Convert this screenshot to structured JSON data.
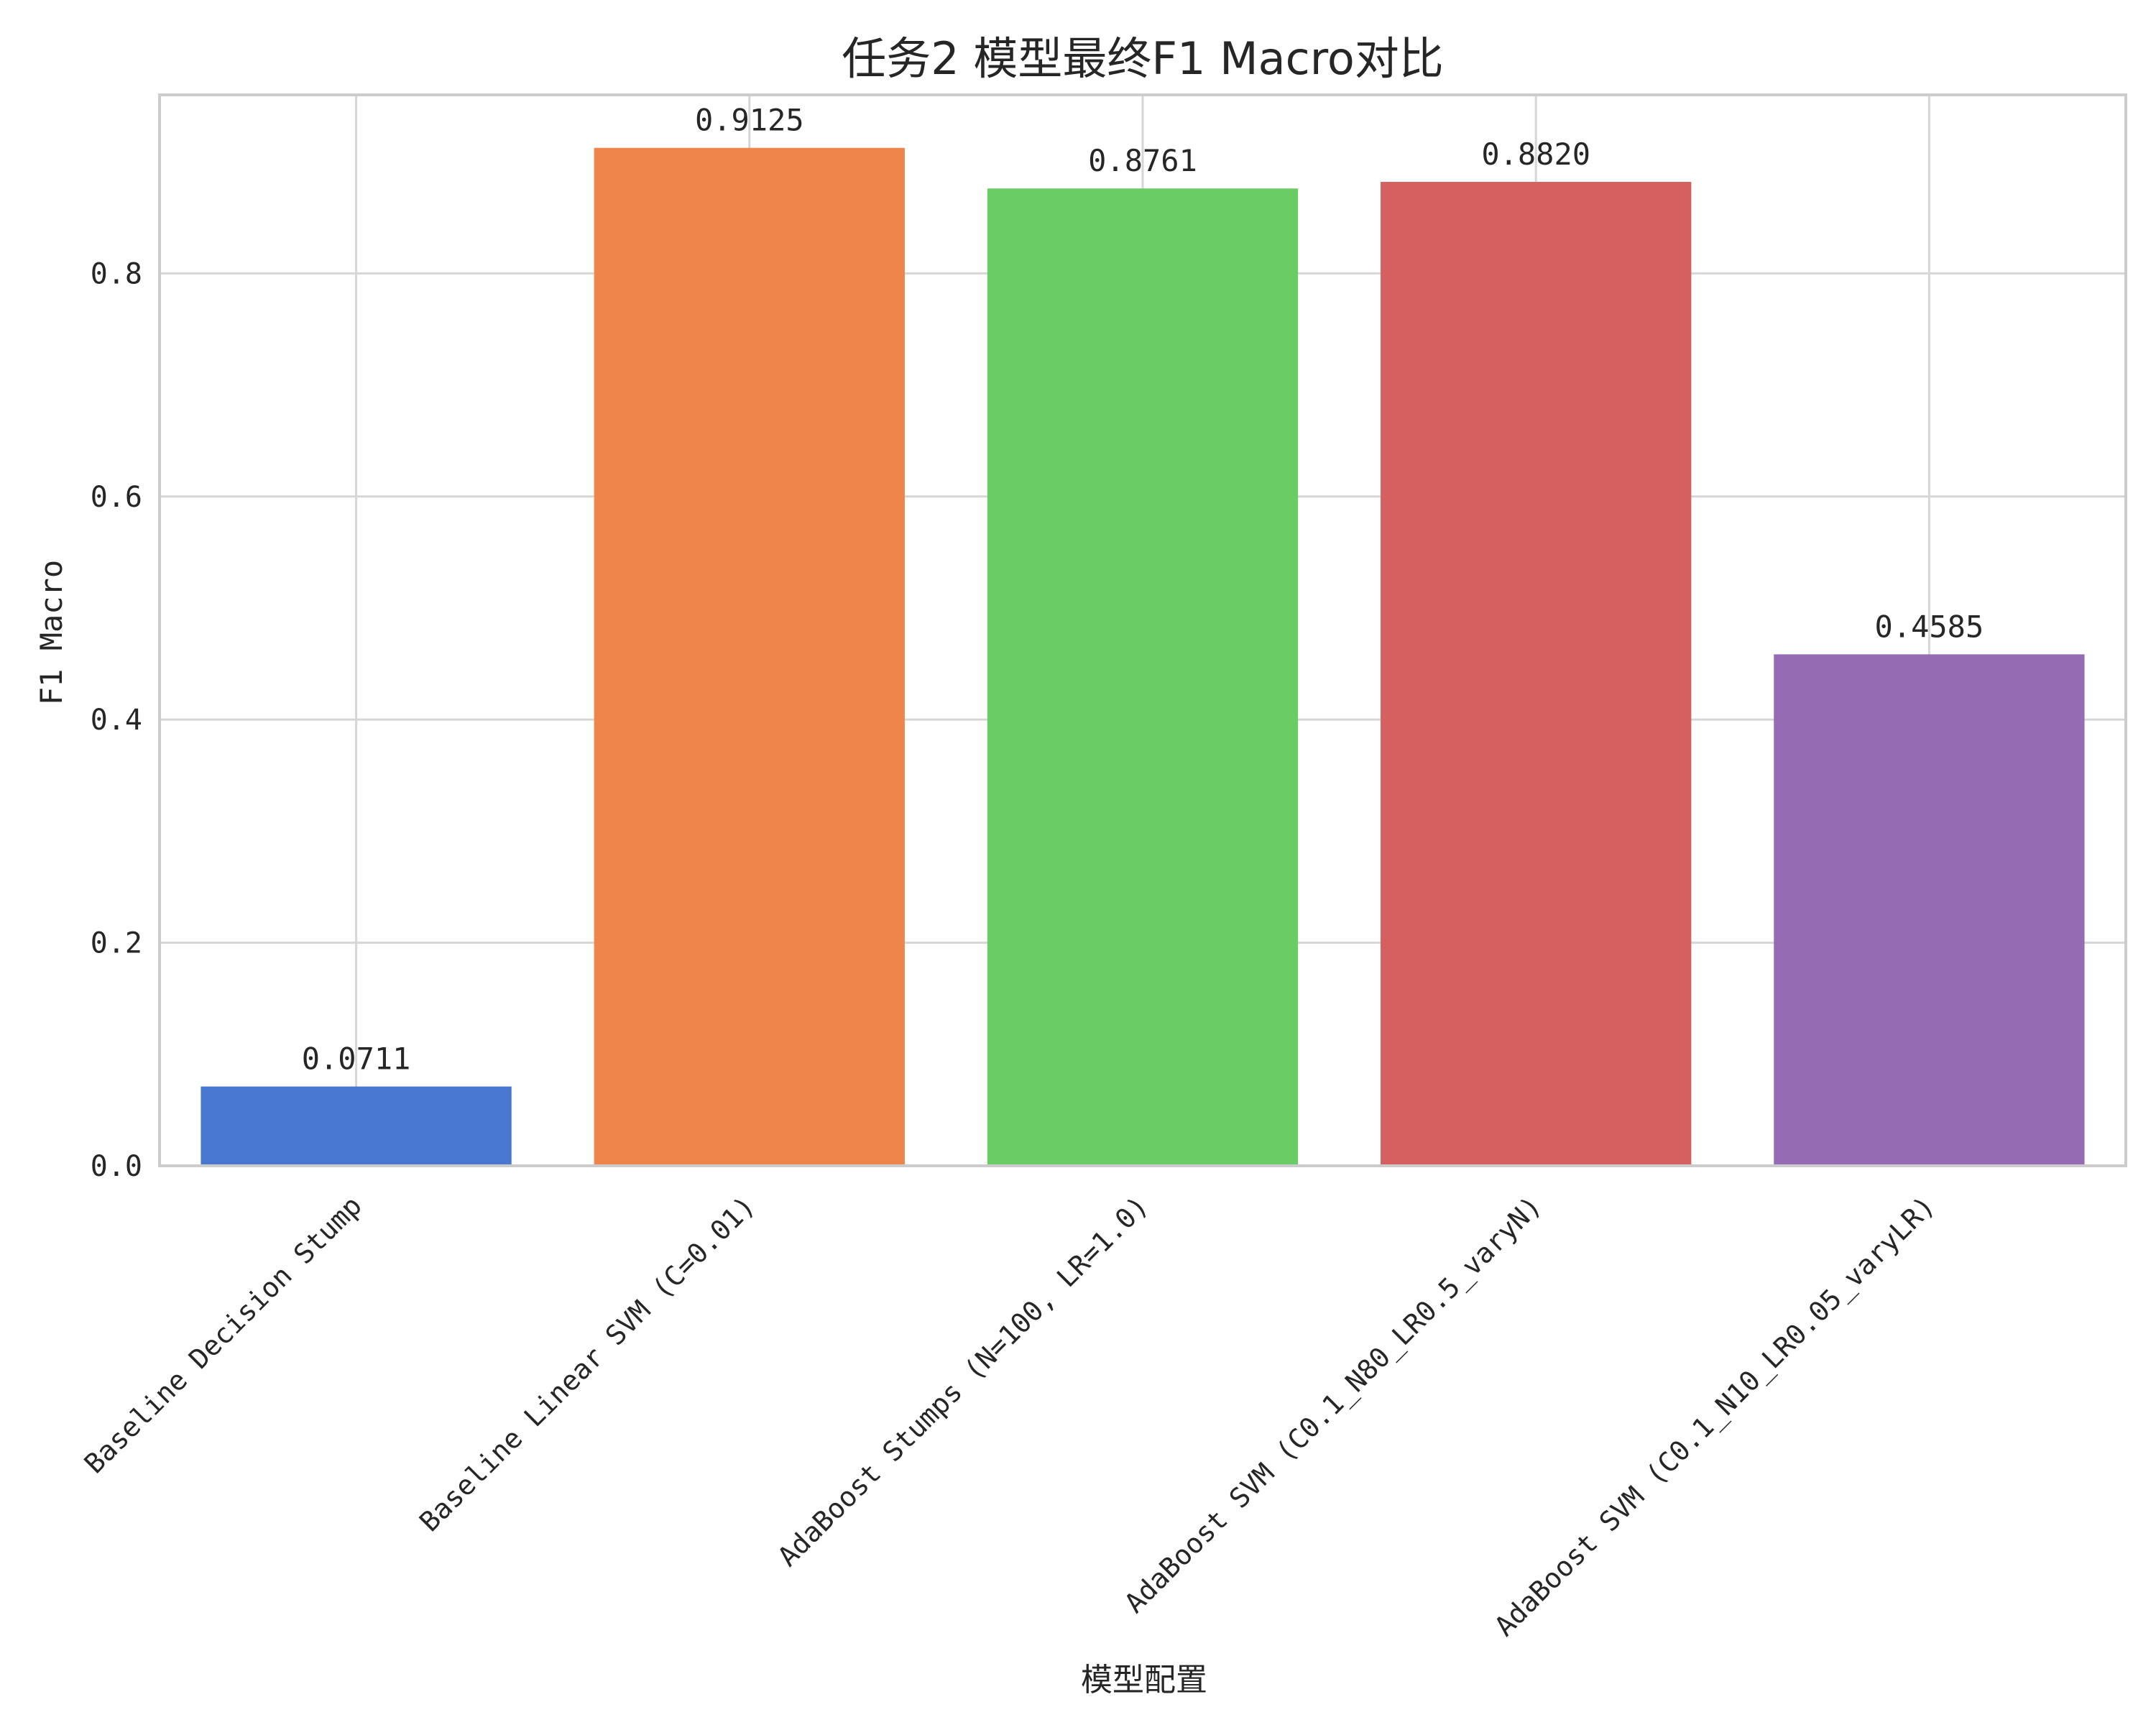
{
  "chart_data": {
    "type": "bar",
    "title": "任务2 模型最终F1 Macro对比",
    "xlabel": "模型配置",
    "ylabel": "F1 Macro",
    "ylim": [
      0,
      0.96
    ],
    "yticks": [
      0.0,
      0.2,
      0.4,
      0.6,
      0.8
    ],
    "ytick_labels": [
      "0.0",
      "0.2",
      "0.4",
      "0.6",
      "0.8"
    ],
    "grid": true,
    "categories": [
      "Baseline Decision Stump",
      "Baseline Linear SVM (C=0.01)",
      "AdaBoost Stumps (N=100, LR=1.0)",
      "AdaBoost SVM (C0.1_N80_LR0.5_varyN)",
      "AdaBoost SVM (C0.1_N10_LR0.05_varyLR)"
    ],
    "values": [
      0.0711,
      0.9125,
      0.8761,
      0.882,
      0.4585
    ],
    "value_labels": [
      "0.0711",
      "0.9125",
      "0.8761",
      "0.8820",
      "0.4585"
    ],
    "colors": [
      "#4878d0",
      "#ee854a",
      "#6acc64",
      "#d65f5f",
      "#956cb4"
    ]
  }
}
